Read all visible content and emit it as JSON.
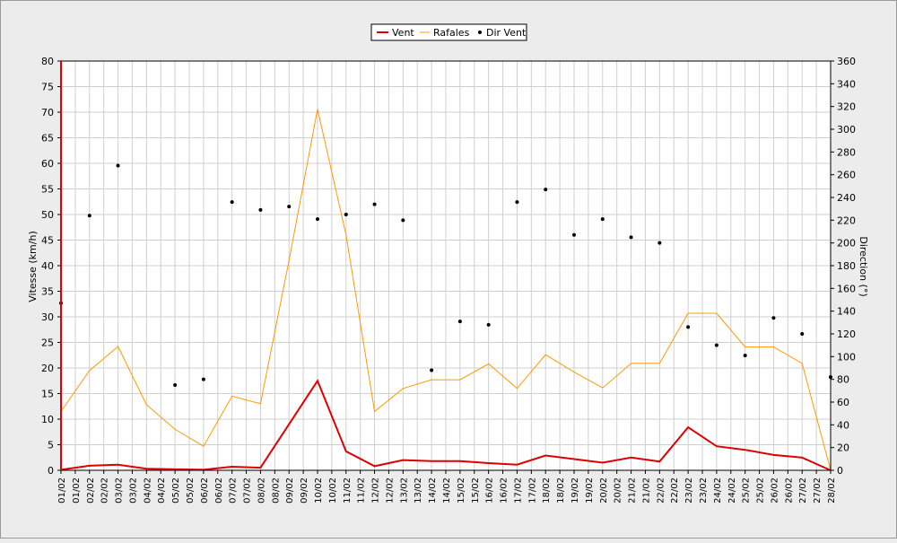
{
  "chart_data": {
    "type": "line",
    "categories": [
      "01/02",
      "01/02",
      "02/02",
      "02/02",
      "03/02",
      "03/02",
      "04/02",
      "04/02",
      "05/02",
      "05/02",
      "06/02",
      "06/02",
      "07/02",
      "07/02",
      "08/02",
      "08/02",
      "09/02",
      "09/02",
      "10/02",
      "10/02",
      "11/02",
      "11/02",
      "12/02",
      "12/02",
      "13/02",
      "13/02",
      "14/02",
      "14/02",
      "15/02",
      "15/02",
      "16/02",
      "16/02",
      "17/02",
      "17/02",
      "18/02",
      "18/02",
      "19/02",
      "19/02",
      "20/02",
      "20/02",
      "21/02",
      "21/02",
      "22/02",
      "22/02",
      "23/02",
      "23/02",
      "24/02",
      "24/02",
      "25/02",
      "25/02",
      "26/02",
      "26/02",
      "27/02",
      "27/02",
      "28/02"
    ],
    "xlabel": "",
    "ylabel": "Vitesse (km/h)",
    "y2label": "Direction (°)",
    "ylim": [
      0,
      80
    ],
    "y2lim": [
      0,
      360
    ],
    "yticks": [
      0,
      5,
      10,
      15,
      20,
      25,
      30,
      35,
      40,
      45,
      50,
      55,
      60,
      65,
      70,
      75,
      80
    ],
    "y2ticks": [
      0,
      20,
      40,
      60,
      80,
      100,
      120,
      140,
      160,
      180,
      200,
      220,
      240,
      260,
      280,
      300,
      320,
      340,
      360
    ],
    "grid": true,
    "legend_position": "top-center",
    "series": [
      {
        "name": "Vent",
        "color": "#dd0000",
        "axis": "left",
        "style": "line",
        "x": [
          0,
          1,
          2,
          3,
          4,
          5,
          6,
          7,
          8,
          9,
          10,
          11,
          12,
          13,
          14,
          15,
          16,
          17,
          18,
          19,
          20,
          21,
          22,
          23,
          24,
          25,
          26,
          27
        ],
        "values": [
          0.1,
          0.9,
          1.1,
          0.3,
          0.2,
          0.1,
          0.7,
          0.5,
          9.0,
          17.5,
          3.7,
          0.8,
          2.0,
          1.8,
          1.8,
          1.4,
          1.1,
          2.9,
          2.2,
          1.5,
          2.5,
          1.7,
          8.4,
          4.7,
          4.0,
          3.0,
          2.5,
          0
        ]
      },
      {
        "name": "Rafales",
        "color": "#ff9900",
        "axis": "left",
        "style": "line",
        "x": [
          0,
          1,
          2,
          3,
          4,
          5,
          6,
          7,
          8,
          9,
          10,
          11,
          12,
          13,
          14,
          15,
          16,
          17,
          18,
          19,
          20,
          21,
          22,
          23,
          24,
          25,
          26,
          27
        ],
        "values": [
          11.5,
          19.5,
          24.2,
          12.8,
          8.0,
          4.7,
          14.5,
          13.0,
          41.0,
          70.6,
          46.0,
          11.5,
          16.0,
          17.7,
          17.7,
          20.8,
          16.0,
          22.6,
          19.2,
          16.1,
          20.9,
          20.9,
          30.7,
          30.7,
          24.1,
          24.1,
          20.9,
          0
        ]
      },
      {
        "name": "Dir Vent",
        "color": "#000000",
        "axis": "right",
        "style": "scatter",
        "x": [
          0,
          1,
          2,
          4,
          5,
          6,
          7,
          8,
          9,
          10,
          11,
          12,
          13,
          14,
          15,
          16,
          17,
          18,
          19,
          20,
          21,
          22,
          23,
          24,
          25,
          26,
          27
        ],
        "values": [
          147,
          224,
          268,
          75,
          80,
          236,
          229,
          232,
          221,
          225,
          234,
          220,
          88,
          131,
          128,
          236,
          247,
          207,
          221,
          205,
          200,
          126,
          110,
          101,
          134,
          120,
          82
        ]
      }
    ]
  }
}
